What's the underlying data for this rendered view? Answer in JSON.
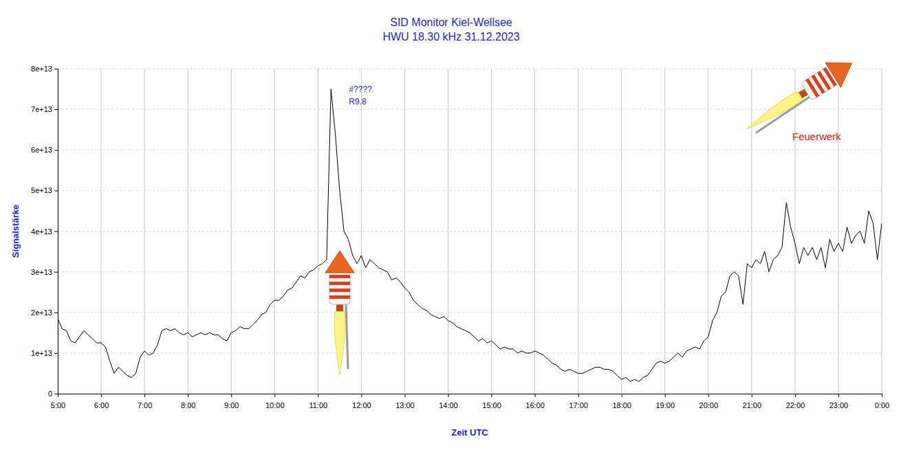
{
  "chart_data": {
    "type": "line",
    "title": "SID Monitor Kiel-Wellsee",
    "subtitle": "HWU 18.30 kHz 31.12.2023",
    "x_label": "Zeit UTC",
    "y_label": "Signalstärke",
    "annotations": [
      "#????",
      "R9.8",
      "Feuerwerk"
    ],
    "color": "#000000",
    "grid": true,
    "xlim": [
      5,
      24
    ],
    "xticks": [
      {
        "value": 5,
        "label": "5:00"
      },
      {
        "value": 6,
        "label": "6:00"
      },
      {
        "value": 7,
        "label": "7:00"
      },
      {
        "value": 8,
        "label": "8:00"
      },
      {
        "value": 9,
        "label": "9:00"
      },
      {
        "value": 10,
        "label": "10:00"
      },
      {
        "value": 11,
        "label": "11:00"
      },
      {
        "value": 12,
        "label": "12:00"
      },
      {
        "value": 13,
        "label": "13:00"
      },
      {
        "value": 14,
        "label": "14:00"
      },
      {
        "value": 15,
        "label": "15:00"
      },
      {
        "value": 16,
        "label": "16:00"
      },
      {
        "value": 17,
        "label": "17:00"
      },
      {
        "value": 18,
        "label": "18:00"
      },
      {
        "value": 19,
        "label": "19:00"
      },
      {
        "value": 20,
        "label": "20:00"
      },
      {
        "value": 21,
        "label": "21:00"
      },
      {
        "value": 22,
        "label": "22:00"
      },
      {
        "value": 23,
        "label": "23:00"
      },
      {
        "value": 24,
        "label": "0:00"
      }
    ],
    "ylim": [
      0,
      80000000000000.0
    ],
    "yticks": [
      0,
      {
        "value": 10000000000000.0,
        "label": "1e+13"
      },
      {
        "value": 20000000000000.0,
        "label": "2e+13"
      },
      {
        "value": 30000000000000.0,
        "label": "3e+13"
      },
      {
        "value": 40000000000000.0,
        "label": "4e+13"
      },
      {
        "value": 50000000000000.0,
        "label": "5e+13"
      },
      {
        "value": 60000000000000.0,
        "label": "6e+13"
      },
      {
        "value": 70000000000000.0,
        "label": "7e+13"
      },
      {
        "value": 80000000000000.0,
        "label": "8e+13"
      }
    ],
    "x": [
      5.0,
      5.1,
      5.2,
      5.3,
      5.4,
      5.5,
      5.6,
      5.7,
      5.8,
      5.9,
      6.0,
      6.1,
      6.2,
      6.3,
      6.4,
      6.5,
      6.6,
      6.7,
      6.8,
      6.9,
      7.0,
      7.1,
      7.2,
      7.3,
      7.4,
      7.5,
      7.6,
      7.7,
      7.8,
      7.9,
      8.0,
      8.1,
      8.2,
      8.3,
      8.4,
      8.5,
      8.6,
      8.7,
      8.8,
      8.9,
      9.0,
      9.1,
      9.2,
      9.3,
      9.4,
      9.5,
      9.6,
      9.7,
      9.8,
      9.9,
      10.0,
      10.1,
      10.2,
      10.3,
      10.4,
      10.5,
      10.6,
      10.7,
      10.8,
      10.9,
      11.0,
      11.1,
      11.2,
      11.3,
      11.4,
      11.5,
      11.6,
      11.7,
      11.8,
      11.9,
      12.0,
      12.1,
      12.2,
      12.3,
      12.4,
      12.5,
      12.6,
      12.7,
      12.8,
      12.9,
      13.0,
      13.1,
      13.2,
      13.3,
      13.4,
      13.5,
      13.6,
      13.7,
      13.8,
      13.9,
      14.0,
      14.1,
      14.2,
      14.3,
      14.4,
      14.5,
      14.6,
      14.7,
      14.8,
      14.9,
      15.0,
      15.1,
      15.2,
      15.3,
      15.4,
      15.5,
      15.6,
      15.7,
      15.8,
      15.9,
      16.0,
      16.1,
      16.2,
      16.3,
      16.4,
      16.5,
      16.6,
      16.7,
      16.8,
      16.9,
      17.0,
      17.1,
      17.2,
      17.3,
      17.4,
      17.5,
      17.6,
      17.7,
      17.8,
      17.9,
      18.0,
      18.1,
      18.2,
      18.3,
      18.4,
      18.5,
      18.6,
      18.7,
      18.8,
      18.9,
      19.0,
      19.1,
      19.2,
      19.3,
      19.4,
      19.5,
      19.6,
      19.7,
      19.8,
      19.9,
      20.0,
      20.1,
      20.2,
      20.3,
      20.4,
      20.5,
      20.6,
      20.7,
      20.8,
      20.9,
      21.0,
      21.1,
      21.2,
      21.3,
      21.4,
      21.5,
      21.6,
      21.7,
      21.8,
      21.9,
      22.0,
      22.1,
      22.2,
      22.3,
      22.4,
      22.5,
      22.6,
      22.7,
      22.8,
      22.9,
      23.0,
      23.1,
      23.2,
      23.3,
      23.4,
      23.5,
      23.6,
      23.7,
      23.8,
      23.9,
      24.0
    ],
    "values": [
      18500000000000.0,
      16000000000000.0,
      15500000000000.0,
      13000000000000.0,
      12500000000000.0,
      14000000000000.0,
      15500000000000.0,
      14500000000000.0,
      13500000000000.0,
      12500000000000.0,
      12500000000000.0,
      11500000000000.0,
      8000000000000.0,
      5000000000000.0,
      6500000000000.0,
      5500000000000.0,
      4500000000000.0,
      4000000000000.0,
      5000000000000.0,
      9000000000000.0,
      10500000000000.0,
      9500000000000.0,
      10000000000000.0,
      12000000000000.0,
      15500000000000.0,
      16000000000000.0,
      15500000000000.0,
      16000000000000.0,
      15000000000000.0,
      14500000000000.0,
      15000000000000.0,
      14000000000000.0,
      14500000000000.0,
      15000000000000.0,
      14500000000000.0,
      15000000000000.0,
      14500000000000.0,
      14500000000000.0,
      13500000000000.0,
      13000000000000.0,
      15000000000000.0,
      15500000000000.0,
      16500000000000.0,
      16000000000000.0,
      16000000000000.0,
      17000000000000.0,
      18000000000000.0,
      19500000000000.0,
      20000000000000.0,
      22000000000000.0,
      23000000000000.0,
      23000000000000.0,
      24000000000000.0,
      25500000000000.0,
      26000000000000.0,
      27500000000000.0,
      29000000000000.0,
      28500000000000.0,
      30000000000000.0,
      30500000000000.0,
      31500000000000.0,
      32000000000000.0,
      33000000000000.0,
      75000000000000.0,
      64000000000000.0,
      50000000000000.0,
      40000000000000.0,
      38000000000000.0,
      34000000000000.0,
      32000000000000.0,
      34000000000000.0,
      31000000000000.0,
      33000000000000.0,
      32000000000000.0,
      31000000000000.0,
      30500000000000.0,
      30000000000000.0,
      28000000000000.0,
      28500000000000.0,
      27500000000000.0,
      26000000000000.0,
      25000000000000.0,
      23000000000000.0,
      22000000000000.0,
      21000000000000.0,
      20500000000000.0,
      19500000000000.0,
      19000000000000.0,
      18500000000000.0,
      19000000000000.0,
      18000000000000.0,
      17500000000000.0,
      16500000000000.0,
      16000000000000.0,
      15500000000000.0,
      15000000000000.0,
      14000000000000.0,
      13000000000000.0,
      13500000000000.0,
      12500000000000.0,
      13000000000000.0,
      12000000000000.0,
      11000000000000.0,
      11500000000000.0,
      11000000000000.0,
      11000000000000.0,
      10000000000000.0,
      10500000000000.0,
      10000000000000.0,
      10000000000000.0,
      10500000000000.0,
      10000000000000.0,
      9500000000000.0,
      8500000000000.0,
      7500000000000.0,
      7000000000000.0,
      6000000000000.0,
      5500000000000.0,
      6000000000000.0,
      5500000000000.0,
      5000000000000.0,
      5000000000000.0,
      5500000000000.0,
      6000000000000.0,
      6500000000000.0,
      6500000000000.0,
      6000000000000.0,
      6000000000000.0,
      5500000000000.0,
      4500000000000.0,
      3500000000000.0,
      4000000000000.0,
      3000000000000.0,
      3500000000000.0,
      3000000000000.0,
      4000000000000.0,
      4500000000000.0,
      6000000000000.0,
      7500000000000.0,
      8000000000000.0,
      7500000000000.0,
      8000000000000.0,
      9000000000000.0,
      10000000000000.0,
      9000000000000.0,
      10500000000000.0,
      11000000000000.0,
      11500000000000.0,
      11000000000000.0,
      13000000000000.0,
      14000000000000.0,
      18000000000000.0,
      20000000000000.0,
      24000000000000.0,
      25000000000000.0,
      29000000000000.0,
      30000000000000.0,
      29000000000000.0,
      22000000000000.0,
      32000000000000.0,
      31000000000000.0,
      33000000000000.0,
      32000000000000.0,
      35000000000000.0,
      30000000000000.0,
      33000000000000.0,
      34000000000000.0,
      36000000000000.0,
      47000000000000.0,
      41000000000000.0,
      37000000000000.0,
      32000000000000.0,
      36000000000000.0,
      34000000000000.0,
      36000000000000.0,
      33000000000000.0,
      36000000000000.0,
      31000000000000.0,
      38000000000000.0,
      35000000000000.0,
      37000000000000.0,
      35000000000000.0,
      41000000000000.0,
      37000000000000.0,
      39000000000000.0,
      40000000000000.0,
      37000000000000.0,
      45000000000000.0,
      42000000000000.0,
      33000000000000.0,
      42000000000000.0
    ]
  }
}
